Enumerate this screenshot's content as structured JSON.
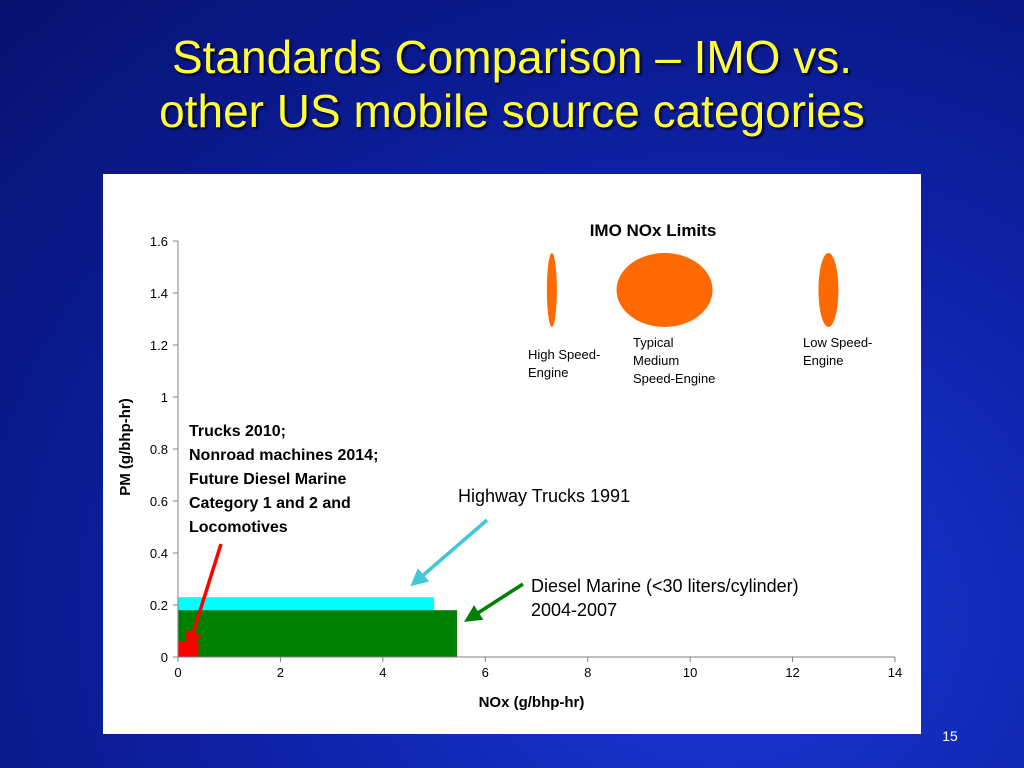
{
  "slide": {
    "title_line1": "Standards Comparison – IMO vs.",
    "title_line2": "other US mobile source categories",
    "slide_number": "15"
  },
  "chart_data": {
    "type": "bar",
    "title": "",
    "xlabel": "NOx (g/bhp-hr)",
    "ylabel": "PM (g/bhp-hr)",
    "xlim": [
      0,
      14
    ],
    "ylim": [
      0,
      1.6
    ],
    "xticks": [
      "0",
      "2",
      "4",
      "6",
      "8",
      "10",
      "12",
      "14"
    ],
    "yticks": [
      "0",
      "0.2",
      "0.4",
      "0.6",
      "0.8",
      "1",
      "1.2",
      "1.4",
      "1.6"
    ],
    "grid": false,
    "regions": [
      {
        "label": "Highway Trucks 1991",
        "nox_max": 5.0,
        "pm_max": 0.23,
        "color": "#00ffff"
      },
      {
        "label": "Diesel Marine (<30 liters/cylinder) 2004-2007",
        "nox_max": 5.45,
        "pm_max": 0.18,
        "color": "#008000"
      },
      {
        "label": "Trucks 2010; Nonroad machines 2014; Future Diesel Marine Category 1 and 2 and Locomotives",
        "nox_max": 0.4,
        "pm_max": 0.06,
        "color": "#ff0000"
      }
    ],
    "imo": {
      "title": "IMO NOx Limits",
      "color": "#ff6a00",
      "limits": [
        {
          "label_lines": [
            "High Speed-",
            "Engine"
          ],
          "nox": 7.3
        },
        {
          "label_lines": [
            "Typical",
            "Medium",
            "Speed-Engine"
          ],
          "nox": 9.5
        },
        {
          "label_lines": [
            "Low Speed-",
            "Engine"
          ],
          "nox": 12.7
        }
      ]
    },
    "annotations": {
      "red_label_lines": [
        "Trucks 2010;",
        "Nonroad machines 2014;",
        "Future Diesel Marine",
        "Category 1 and 2 and",
        "Locomotives"
      ],
      "cyan_label": "Highway Trucks 1991",
      "green_label_lines": [
        "Diesel Marine (<30 liters/cylinder)",
        "2004-2007"
      ]
    }
  }
}
